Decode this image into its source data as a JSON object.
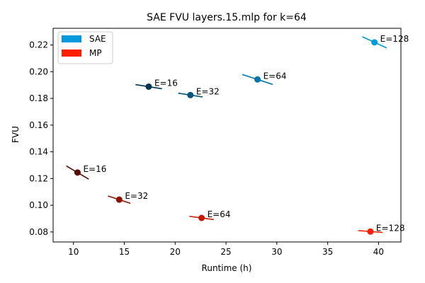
{
  "chart_data": {
    "type": "scatter",
    "title": "SAE FVU layers.15.mlp for k=64",
    "xlabel": "Runtime (h)",
    "ylabel": "FVU",
    "xlim": [
      8.0,
      42.2
    ],
    "ylim": [
      0.0725,
      0.2325
    ],
    "xticks": [
      10,
      15,
      20,
      25,
      30,
      35,
      40
    ],
    "yticks": [
      0.08,
      0.1,
      0.12,
      0.14,
      0.16,
      0.18,
      0.2,
      0.22
    ],
    "ytick_labels": [
      "0.08",
      "0.10",
      "0.12",
      "0.14",
      "0.16",
      "0.18",
      "0.20",
      "0.22"
    ],
    "grid": false,
    "legend_position": "top-left",
    "legend": [
      {
        "label": "SAE",
        "color": "#009ade"
      },
      {
        "label": "MP",
        "color": "#ff1f00"
      }
    ],
    "series": [
      {
        "name": "SAE",
        "points": [
          {
            "x": 17.4,
            "y": 0.1888,
            "label": "E=16",
            "color": "#00344f",
            "slope": -0.0012,
            "dx": 1.3
          },
          {
            "x": 21.5,
            "y": 0.1825,
            "label": "E=32",
            "color": "#00547f",
            "slope": -0.0012,
            "dx": 1.2
          },
          {
            "x": 28.1,
            "y": 0.1942,
            "label": "E=64",
            "color": "#0074ae",
            "slope": -0.0025,
            "dx": 1.5
          },
          {
            "x": 39.6,
            "y": 0.222,
            "label": "E=128",
            "color": "#009ade",
            "slope": -0.0035,
            "dx": 1.2
          }
        ]
      },
      {
        "name": "MP",
        "points": [
          {
            "x": 10.4,
            "y": 0.1245,
            "label": "E=16",
            "color": "#5a0b00",
            "slope": -0.0045,
            "dx": 1.1
          },
          {
            "x": 14.5,
            "y": 0.1042,
            "label": "E=32",
            "color": "#8c1000",
            "slope": -0.0025,
            "dx": 1.1
          },
          {
            "x": 22.6,
            "y": 0.0905,
            "label": "E=64",
            "color": "#c91800",
            "slope": -0.001,
            "dx": 1.2
          },
          {
            "x": 39.2,
            "y": 0.0803,
            "label": "E=128",
            "color": "#ff1f00",
            "slope": -0.0006,
            "dx": 1.2
          }
        ]
      }
    ]
  }
}
